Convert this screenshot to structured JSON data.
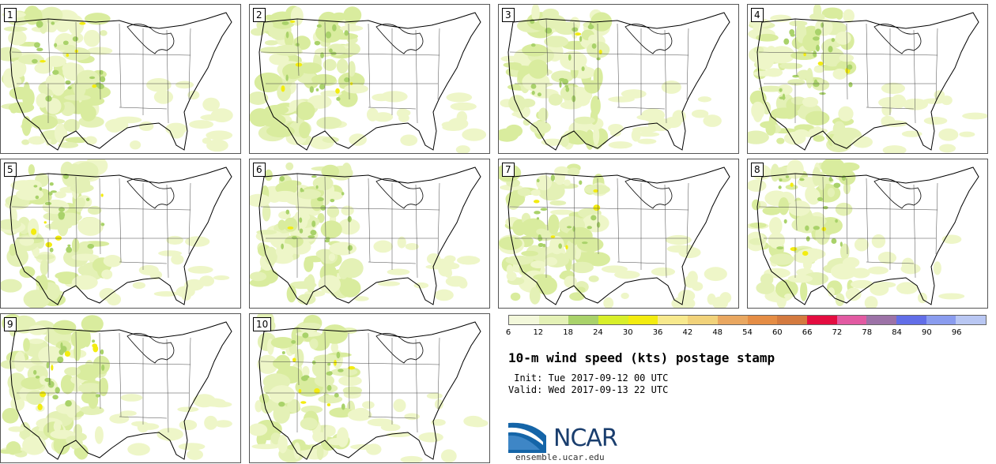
{
  "panels": [
    "1",
    "2",
    "3",
    "4",
    "5",
    "6",
    "7",
    "8",
    "9",
    "10"
  ],
  "colorbar": {
    "colors": [
      "#f3f8db",
      "#e4f1b6",
      "#a9d26a",
      "#d8ef2a",
      "#f3ec10",
      "#f7e98d",
      "#f1d27a",
      "#e9a760",
      "#e58d45",
      "#d47a3f",
      "#e40d40",
      "#e25aa2",
      "#9c72a7",
      "#626ee8",
      "#8a9cef",
      "#b9c7f3"
    ],
    "labels": [
      "6",
      "12",
      "18",
      "24",
      "30",
      "36",
      "42",
      "48",
      "54",
      "60",
      "66",
      "72",
      "78",
      "84",
      "90",
      "96"
    ]
  },
  "title": "10-m wind speed (kts) postage stamp",
  "init_line": " Init: Tue 2017-09-12 00 UTC",
  "valid_line": "Valid: Wed 2017-09-13 22 UTC",
  "logo": {
    "text": "NCAR",
    "url": "ensemble.ucar.edu"
  }
}
